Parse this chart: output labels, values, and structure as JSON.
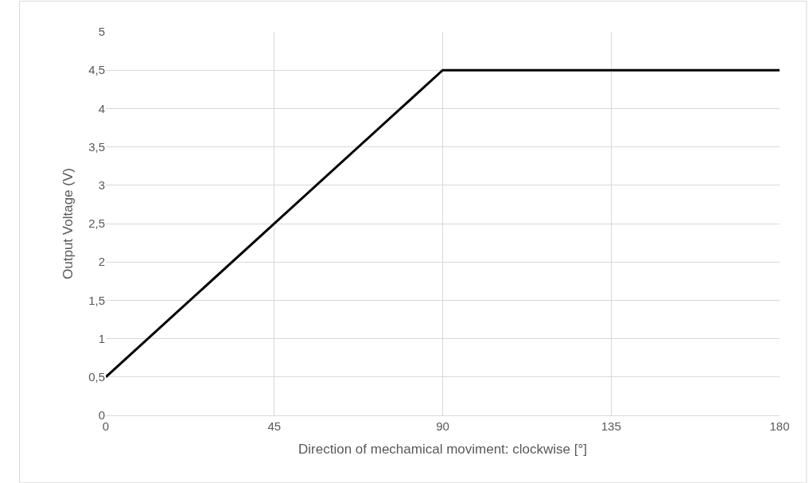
{
  "chart_data": {
    "type": "line",
    "xlabel": "Direction of mechamical moviment: clockwise [°]",
    "ylabel": "Output Voltage (V)",
    "x": [
      0,
      90,
      180
    ],
    "series": [
      {
        "color": "#000000",
        "values": [
          0.5,
          4.5,
          4.5
        ]
      }
    ],
    "xlim": [
      0,
      180
    ],
    "xticks": [
      0,
      45,
      90,
      135,
      180
    ],
    "ylim": [
      0,
      5
    ],
    "yticks": [
      0,
      {
        "value": 0.5,
        "label": "0,5"
      },
      1,
      {
        "value": 1.5,
        "label": "1,5"
      },
      2,
      {
        "value": 2.5,
        "label": "2,5"
      },
      3,
      {
        "value": 3.5,
        "label": "3,5"
      },
      4,
      {
        "value": 4.5,
        "label": "4,5"
      },
      5
    ],
    "grid": true,
    "marker": "none",
    "line_style": "solid"
  }
}
